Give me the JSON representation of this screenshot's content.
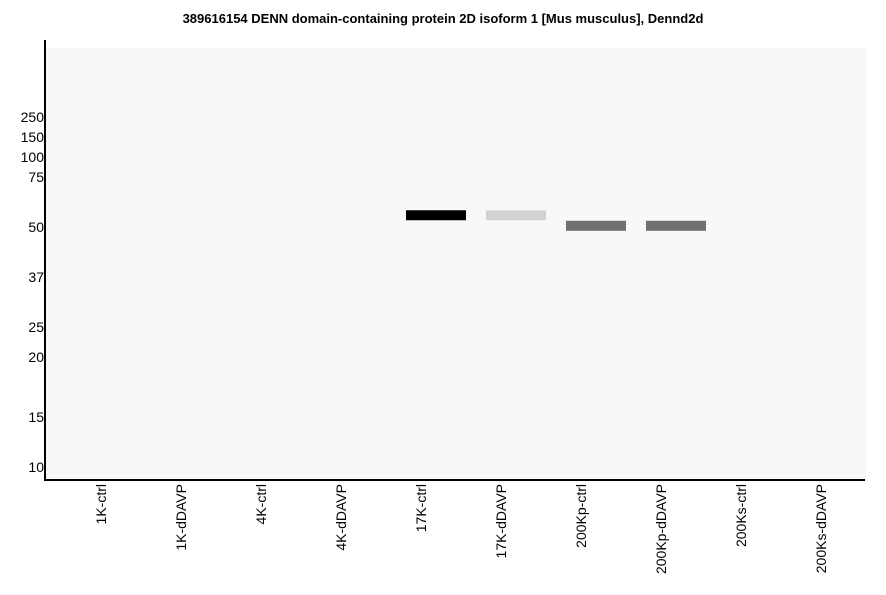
{
  "chart_data": {
    "type": "western-blot",
    "title": "389616154 DENN domain-containing protein 2D isoform 1 [Mus musculus], Dennd2d",
    "y_ticks": [
      250,
      150,
      100,
      75,
      50,
      37,
      25,
      20,
      15,
      10
    ],
    "lanes": [
      "1K-ctrl",
      "1K-dDAVP",
      "4K-ctrl",
      "4K-dDAVP",
      "17K-ctrl",
      "17K-dDAVP",
      "200Kp-ctrl",
      "200Kp-dDAVP",
      "200Ks-ctrl",
      "200Ks-dDAVP"
    ],
    "bands": [
      {
        "lane": "17K-ctrl",
        "mw": 55,
        "color": "#000000"
      },
      {
        "lane": "17K-dDAVP",
        "mw": 55,
        "color": "#d2d2d2"
      },
      {
        "lane": "200Kp-ctrl",
        "mw": 50.5,
        "color": "#707070"
      },
      {
        "lane": "200Kp-dDAVP",
        "mw": 50.5,
        "color": "#707070"
      }
    ],
    "background_color": "#f8f8f8"
  }
}
